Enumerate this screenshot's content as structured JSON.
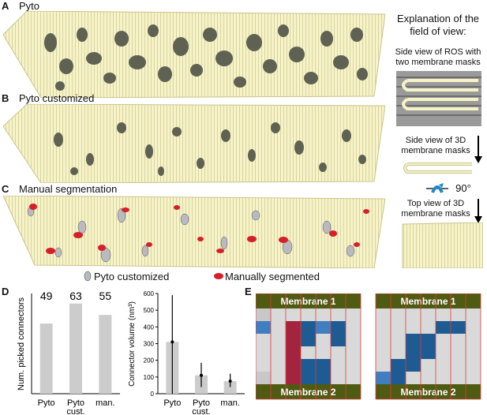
{
  "panels": {
    "A": {
      "letter": "A",
      "title": "Pyto"
    },
    "B": {
      "letter": "B",
      "title": "Pyto customized"
    },
    "C": {
      "letter": "C",
      "title": "Manual segmentation"
    },
    "D": {
      "letter": "D"
    },
    "E": {
      "letter": "E"
    }
  },
  "explanation": {
    "heading": "Explanation of the field of view:",
    "side_ros": "Side view of ROS with two membrane masks",
    "side_3d": "Side view of 3D membrane masks",
    "rotation": "90°",
    "top_3d": "Top view of 3D membrane masks"
  },
  "legend": {
    "pyto_customized": "Pyto customized",
    "manually_segmented": "Manually segmented"
  },
  "colors": {
    "membrane_fill": "#f6f3c8",
    "membrane_stroke": "#c9c48e",
    "connector_dark": "#5f6152",
    "manual_red": "#d61f2a",
    "pyto_gray": "#b8bac0",
    "bar_gray": "#cccccc",
    "grid_blue": "#1f5b93",
    "grid_light_blue": "#3f7fbf",
    "grid_red": "#a3243e",
    "membrane_band": "#4f5a12"
  },
  "chart_data": [
    {
      "type": "bar",
      "categories": [
        "Pyto",
        "Pyto cust.",
        "man."
      ],
      "values": [
        49,
        63,
        55
      ],
      "data_labels": [
        "49",
        "63",
        "55"
      ],
      "ylabel": "Num. picked connectors",
      "xlabel": "",
      "ylim": [
        0,
        70
      ],
      "yticks": [],
      "grid": false
    },
    {
      "type": "bar",
      "categories": [
        "Pyto",
        "Pyto cust.",
        "man."
      ],
      "values": [
        310,
        110,
        75
      ],
      "error_low": [
        0,
        40,
        40
      ],
      "error_high": [
        590,
        185,
        120
      ],
      "ylabel": "Connector volume (nm³)",
      "xlabel": "",
      "ylim": [
        0,
        600
      ],
      "yticks": [
        0,
        100,
        200,
        300,
        400,
        500,
        600
      ],
      "grid": false
    }
  ],
  "grids": [
    {
      "top_label": "Membrane 1",
      "bottom_label": "Membrane 2",
      "cells": [
        [
          "L",
          "G",
          "G",
          "G",
          "G",
          "G",
          "G"
        ],
        [
          "B",
          "G",
          "R",
          "D",
          "B",
          "D",
          "G"
        ],
        [
          "G",
          "G",
          "R",
          "D",
          "G",
          "D",
          "G"
        ],
        [
          "G",
          "G",
          "R",
          "G",
          "G",
          "G",
          "G"
        ],
        [
          "G",
          "G",
          "R",
          "D",
          "D",
          "G",
          "G"
        ],
        [
          "L",
          "G",
          "R",
          "D",
          "D",
          "G",
          "G"
        ]
      ]
    },
    {
      "top_label": "Membrane 1",
      "bottom_label": "Membrane 2",
      "cells": [
        [
          "G",
          "G",
          "G",
          "G",
          "G",
          "G",
          "G"
        ],
        [
          "G",
          "G",
          "G",
          "G",
          "D",
          "D",
          "G"
        ],
        [
          "G",
          "G",
          "D",
          "D",
          "G",
          "G",
          "G"
        ],
        [
          "G",
          "G",
          "D",
          "D",
          "G",
          "G",
          "G"
        ],
        [
          "G",
          "D",
          "D",
          "G",
          "G",
          "G",
          "G"
        ],
        [
          "B",
          "D",
          "G",
          "G",
          "G",
          "G",
          "G"
        ]
      ]
    }
  ]
}
